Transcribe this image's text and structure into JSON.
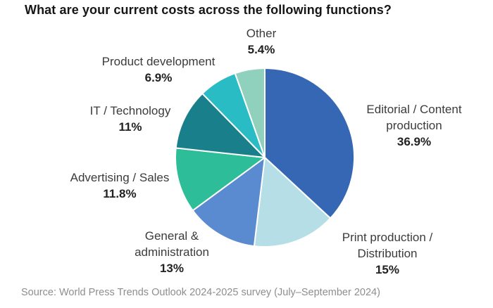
{
  "header": {
    "title": "What are your current costs across the following functions?"
  },
  "labels": {
    "other": {
      "lines": [
        "Other"
      ],
      "pct": "5.4%"
    },
    "product_development": {
      "lines": [
        "Product development"
      ],
      "pct": "6.9%"
    },
    "it_technology": {
      "lines": [
        "IT / Technology"
      ],
      "pct": "11%"
    },
    "advertising_sales": {
      "lines": [
        "Advertising / Sales"
      ],
      "pct": "11.8%"
    },
    "general_administration": {
      "lines": [
        "General &",
        "administration"
      ],
      "pct": "13%"
    },
    "editorial": {
      "lines": [
        "Editorial / Content",
        "production"
      ],
      "pct": "36.9%"
    },
    "print": {
      "lines": [
        "Print production /",
        "Distribution"
      ],
      "pct": "15%"
    }
  },
  "footer": {
    "source": "Source: World Press Trends Outlook 2024-2025 survey (July–September 2024)"
  },
  "chart_data": {
    "type": "pie",
    "title": "What are your current costs across the following functions?",
    "categories": [
      "Editorial / Content production",
      "Print production / Distribution",
      "General & administration",
      "Advertising / Sales",
      "IT / Technology",
      "Product development",
      "Other"
    ],
    "values": [
      36.9,
      15,
      13,
      11.8,
      11,
      6.9,
      5.4
    ],
    "unit": "%",
    "colors": [
      "#3667B4",
      "#B5DEE7",
      "#5A8AD0",
      "#2DBD98",
      "#19808B",
      "#29BCC5",
      "#8FD1BC"
    ],
    "slice_names": [
      "editorial-content-production",
      "print-production-distribution",
      "general-administration",
      "advertising-sales",
      "it-technology",
      "product-development",
      "other"
    ],
    "start_angle_deg": 0,
    "direction": "clockwise",
    "legend_position": "none",
    "labels_outside": true,
    "source": "World Press Trends Outlook 2024-2025 survey (July–September 2024)"
  }
}
